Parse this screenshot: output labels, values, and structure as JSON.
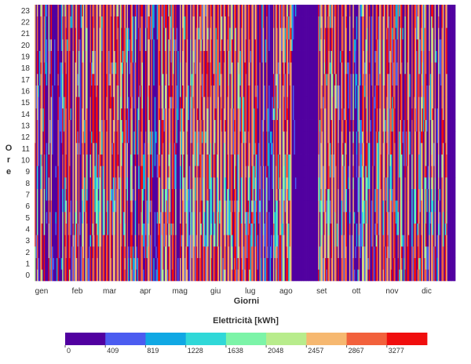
{
  "chart_data": {
    "type": "heatmap",
    "title": "",
    "xlabel": "Giorni",
    "ylabel": "Ore",
    "x_tick_labels": [
      "gen",
      "feb",
      "mar",
      "apr",
      "mag",
      "giu",
      "lug",
      "ago",
      "set",
      "ott",
      "nov",
      "dic"
    ],
    "y_tick_labels": [
      "0",
      "1",
      "2",
      "3",
      "4",
      "5",
      "6",
      "7",
      "8",
      "9",
      "10",
      "11",
      "12",
      "13",
      "14",
      "15",
      "16",
      "17",
      "18",
      "19",
      "20",
      "21",
      "22",
      "23"
    ],
    "days_in_year": 365,
    "hours": 24,
    "zero_day_ranges": [
      [
        227,
        245
      ],
      [
        359,
        364
      ]
    ],
    "colorbar": {
      "title": "Elettricità [kWh]",
      "ticks": [
        "0",
        "409",
        "819",
        "1228",
        "1638",
        "2048",
        "2457",
        "2867",
        "3277"
      ],
      "min": 0,
      "max": 3686,
      "colors": [
        "#5100A0",
        "#4B5CF0",
        "#10A8E4",
        "#30D8D8",
        "#7CF4A8",
        "#B8EC8C",
        "#F6B870",
        "#F2613C",
        "#F00E0E"
      ],
      "legend_position": "bottom"
    },
    "value_pattern": "Daily stripes: roughly alternating low-consumption days (purple/blue) and high-consumption days (orange/red), with mid-range (green/cyan) cells concentrated in early-morning hours 3-8; mid-August and late-December blocks are zero."
  }
}
